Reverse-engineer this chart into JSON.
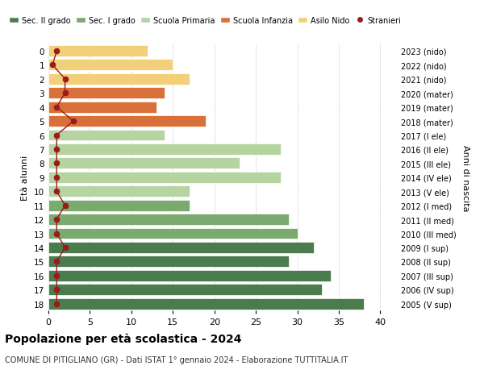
{
  "ages": [
    0,
    1,
    2,
    3,
    4,
    5,
    6,
    7,
    8,
    9,
    10,
    11,
    12,
    13,
    14,
    15,
    16,
    17,
    18
  ],
  "values": [
    12,
    15,
    17,
    14,
    13,
    19,
    14,
    28,
    23,
    28,
    17,
    17,
    29,
    30,
    32,
    29,
    34,
    33,
    38
  ],
  "stranieri": [
    1,
    0,
    2,
    2,
    1,
    3,
    1,
    1,
    1,
    1,
    1,
    2,
    1,
    1,
    2,
    1,
    1,
    1,
    1
  ],
  "right_labels": [
    "2023 (nido)",
    "2022 (nido)",
    "2021 (nido)",
    "2020 (mater)",
    "2019 (mater)",
    "2018 (mater)",
    "2017 (I ele)",
    "2016 (II ele)",
    "2015 (III ele)",
    "2014 (IV ele)",
    "2013 (V ele)",
    "2012 (I med)",
    "2011 (II med)",
    "2010 (III med)",
    "2009 (I sup)",
    "2008 (II sup)",
    "2007 (III sup)",
    "2006 (IV sup)",
    "2005 (V sup)"
  ],
  "bar_colors": [
    "#f2d07a",
    "#f2d07a",
    "#f2d07a",
    "#d9703a",
    "#d9703a",
    "#d9703a",
    "#b5d4a0",
    "#b5d4a0",
    "#b5d4a0",
    "#b5d4a0",
    "#b5d4a0",
    "#7aaa6e",
    "#7aaa6e",
    "#7aaa6e",
    "#4a7c4e",
    "#4a7c4e",
    "#4a7c4e",
    "#4a7c4e",
    "#4a7c4e"
  ],
  "legend_labels": [
    "Sec. II grado",
    "Sec. I grado",
    "Scuola Primaria",
    "Scuola Infanzia",
    "Asilo Nido",
    "Stranieri"
  ],
  "legend_colors": [
    "#4a7c4e",
    "#7aaa6e",
    "#b5d4a0",
    "#d9703a",
    "#f2d07a",
    "#9b1a1a"
  ],
  "stranieri_color": "#9b1a1a",
  "stranieri_line_color": "#9b1a1a",
  "title": "Popolazione per età scolastica - 2024",
  "subtitle": "COMUNE DI PITIGLIANO (GR) - Dati ISTAT 1° gennaio 2024 - Elaborazione TUTTITALIA.IT",
  "ylabel": "Età alunni",
  "ylabel2": "Anni di nascita",
  "xlim": [
    0,
    42
  ],
  "background_color": "#ffffff",
  "grid_color": "#cccccc"
}
